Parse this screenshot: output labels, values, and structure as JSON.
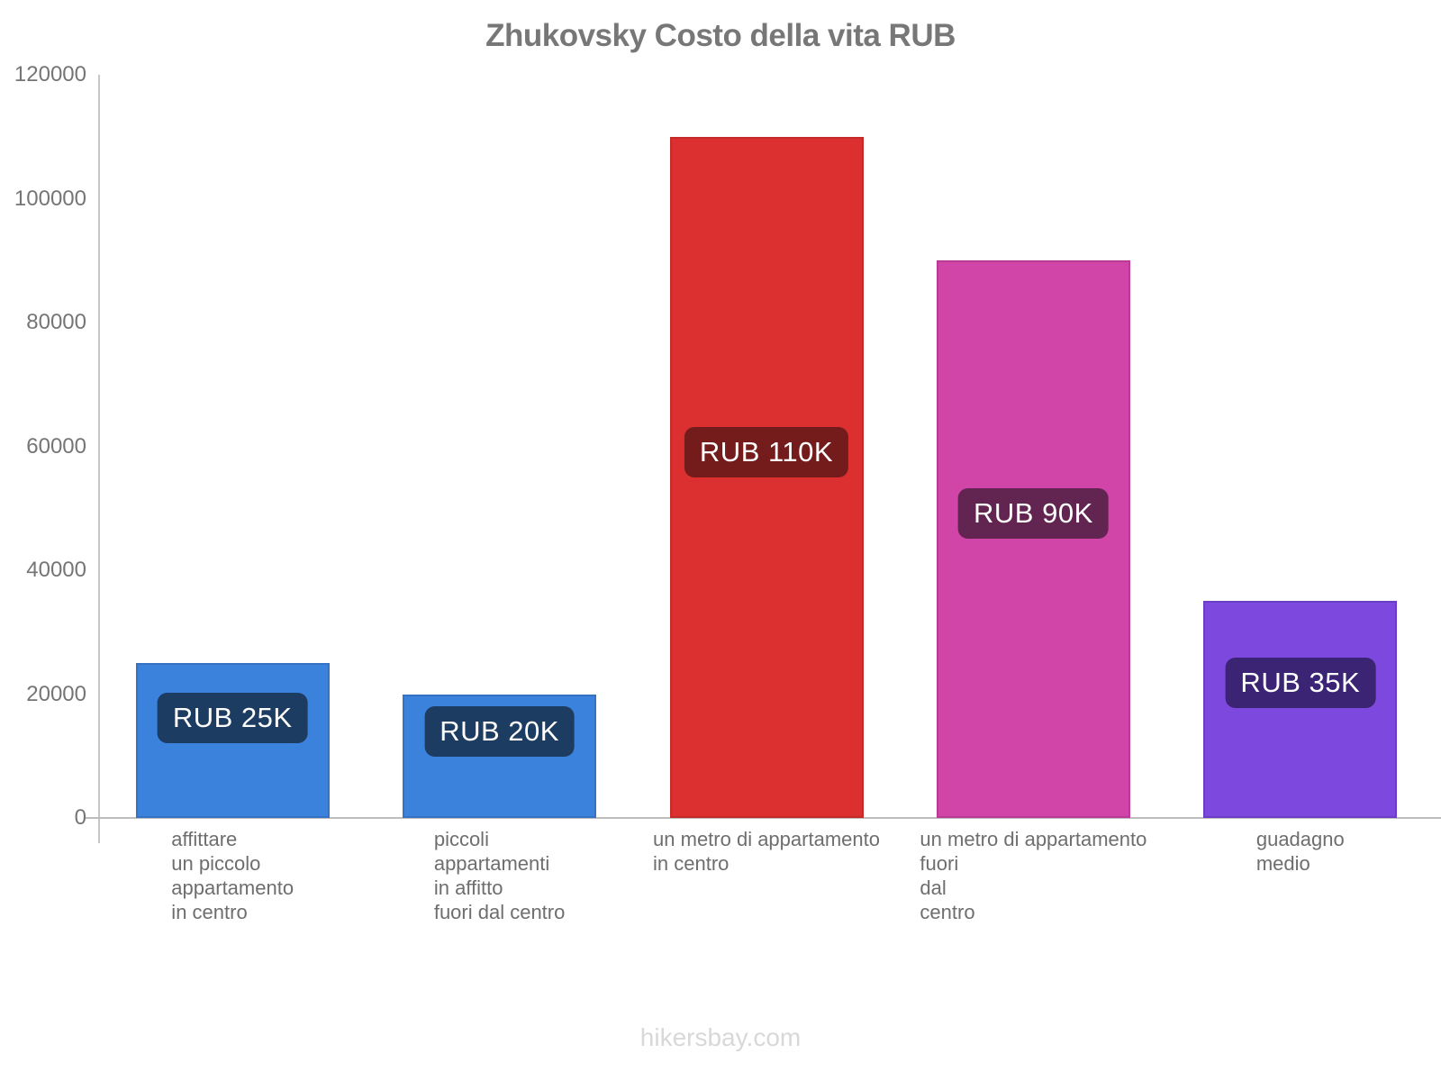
{
  "chart_data": {
    "type": "bar",
    "title": "Zhukovsky Costo della vita RUB",
    "currency": "RUB",
    "categories": [
      "affittare un piccolo appartamento in centro",
      "piccoli appartamenti in affitto fuori dal centro",
      "un metro di appartamento in centro",
      "un metro di appartamento fuori dal centro",
      "guadagno medio"
    ],
    "category_lines": [
      [
        "affittare",
        "un piccolo",
        "appartamento",
        "in centro"
      ],
      [
        "piccoli",
        "appartamenti",
        "in affitto",
        "fuori dal centro"
      ],
      [
        "un metro di appartamento",
        "in centro"
      ],
      [
        "un metro di appartamento",
        "fuori",
        "dal",
        "centro"
      ],
      [
        "guadagno",
        "medio"
      ]
    ],
    "values": [
      25000,
      20000,
      110000,
      90000,
      35000
    ],
    "value_labels": [
      "RUB 25K",
      "RUB 20K",
      "RUB 110K",
      "RUB 90K",
      "RUB 35K"
    ],
    "bar_colors": [
      "#3b82dd",
      "#3b82dd",
      "#dc3030",
      "#d144a8",
      "#7d48dd"
    ],
    "bar_border_colors": [
      "#3572c4",
      "#3572c4",
      "#c52a2a",
      "#ba3b95",
      "#6c3ec6"
    ],
    "badge_colors": [
      "#1d3c61",
      "#1d3c61",
      "#741c1c",
      "#622450",
      "#3a2473"
    ],
    "badge_text_color": "#ffffff",
    "badge_offset_frac": [
      0.34,
      0.29,
      0.46,
      0.45,
      0.37
    ],
    "ylim": [
      0,
      120000
    ],
    "yticks": [
      0,
      20000,
      40000,
      60000,
      80000,
      100000,
      120000
    ],
    "ytick_labels": [
      "0",
      "20000",
      "40000",
      "60000",
      "80000",
      "100000",
      "120000"
    ],
    "xlabel": "",
    "ylabel": "",
    "grid": false,
    "legend": false,
    "axis_color": "#bdbdbd",
    "text_colors": {
      "title": "#777777",
      "ytick": "#757575",
      "category": "#6e6e6e",
      "watermark": "#d8d8d8"
    }
  },
  "watermark": {
    "text": "hikersbay.com"
  }
}
